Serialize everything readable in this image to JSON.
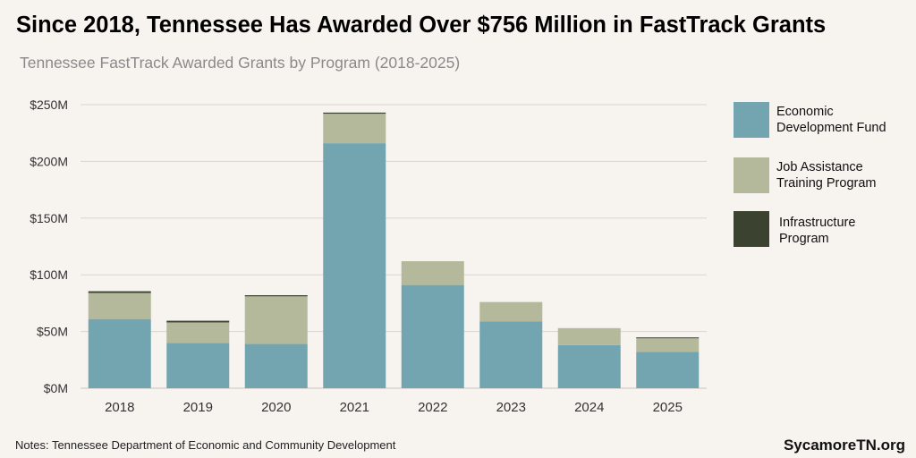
{
  "title": "Since 2018, Tennessee Has Awarded Over $756 Million in FastTrack Grants",
  "subtitle": "Tennessee FastTrack Awarded Grants by Program (2018-2025)",
  "notes": "Notes: Tennessee Department of Economic and Community Development",
  "brand": "SycamoreTN.org",
  "colors": {
    "background": "#f7f3ef",
    "economic": "#72a5b0",
    "job": "#b4b99b",
    "infrastructure": "#3c4230",
    "grid": "#d9d4cf",
    "axis_text": "#333333"
  },
  "legend": [
    {
      "label": "Economic\nDevelopment Fund",
      "color": "#72a5b0"
    },
    {
      "label": "Job Assistance\nTraining Program",
      "color": "#b4b99b"
    },
    {
      "label": "Infrastructure\nProgram",
      "color": "#3c4230"
    }
  ],
  "chart_data": {
    "type": "bar",
    "stacked": true,
    "title": "Since 2018, Tennessee Has Awarded Over $756 Million in FastTrack Grants",
    "subtitle": "Tennessee FastTrack Awarded Grants by Program (2018-2025)",
    "categories": [
      "2018",
      "2019",
      "2020",
      "2021",
      "2022",
      "2023",
      "2024",
      "2025"
    ],
    "series": [
      {
        "name": "Economic Development Fund",
        "color": "#72a5b0",
        "values": [
          61,
          40,
          39,
          216,
          91,
          59,
          38,
          32
        ]
      },
      {
        "name": "Job Assistance Training Program",
        "color": "#b4b99b",
        "values": [
          23,
          18,
          42,
          26,
          21,
          17,
          15,
          12
        ]
      },
      {
        "name": "Infrastructure Program",
        "color": "#3c4230",
        "values": [
          1.5,
          1.5,
          1,
          1,
          0,
          0,
          0,
          0.8
        ]
      }
    ],
    "y_ticks": [
      0,
      50,
      100,
      150,
      200,
      250
    ],
    "y_tick_labels": [
      "$0M",
      "$50M",
      "$100M",
      "$150M",
      "$200M",
      "$250M"
    ],
    "ylim": [
      0,
      250
    ],
    "unit": "millions USD",
    "grid": true,
    "legend_position": "right"
  }
}
